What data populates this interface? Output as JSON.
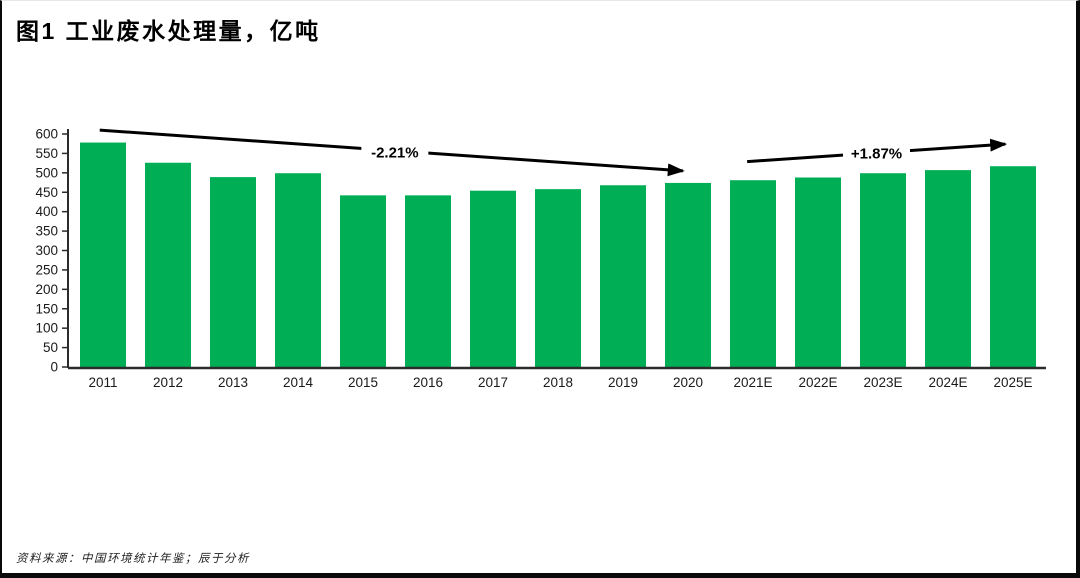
{
  "page": {
    "title": "图1 工业废水处理量，亿吨",
    "source": "资料来源：中国环境统计年鉴；辰于分析"
  },
  "colors": {
    "bar": "#00AE56",
    "axis": "#2b2b2b",
    "text": "#1a1a1a",
    "annotation": "#000000",
    "background": "#ffffff"
  },
  "chart_data": {
    "type": "bar",
    "title": "图1 工业废水处理量，亿吨",
    "unit": "亿吨",
    "xlabel": "",
    "ylabel": "",
    "categories": [
      "2011",
      "2012",
      "2013",
      "2014",
      "2015",
      "2016",
      "2017",
      "2018",
      "2019",
      "2020",
      "2021E",
      "2022E",
      "2023E",
      "2024E",
      "2025E"
    ],
    "values": [
      578,
      526,
      489,
      499,
      442,
      442,
      454,
      458,
      468,
      474,
      481,
      488,
      499,
      507,
      517
    ],
    "ylim": [
      0,
      600
    ],
    "ytick_step": 50,
    "grid": false,
    "legend": null,
    "annotations": [
      {
        "label": "-2.21%",
        "from_cat": -0.05,
        "from_value": 610,
        "to_cat": 8.92,
        "to_value": 505,
        "label_cat": 4.49,
        "label_value": 554
      },
      {
        "label": "+1.87%",
        "from_cat": 9.91,
        "from_value": 529,
        "to_cat": 13.88,
        "to_value": 574,
        "label_cat": 11.9,
        "label_value": 551
      }
    ]
  }
}
